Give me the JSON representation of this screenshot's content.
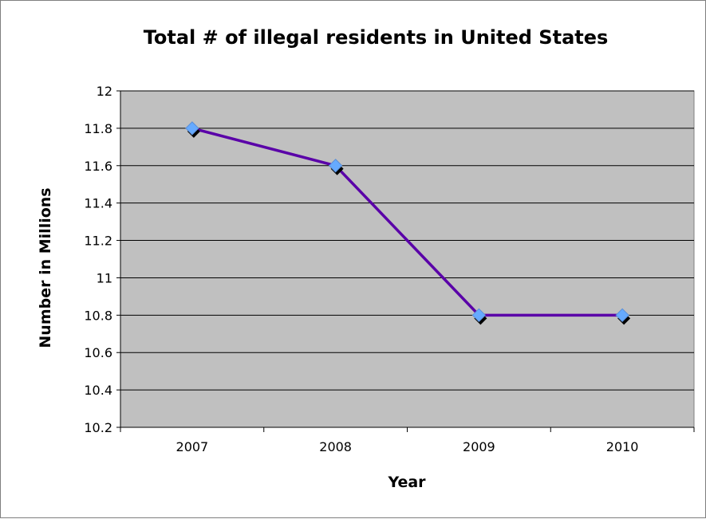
{
  "chart_data": {
    "type": "line",
    "title": "Total # of illegal residents in United States",
    "xlabel": "Year",
    "ylabel": "Number in Millions",
    "categories": [
      "2007",
      "2008",
      "2009",
      "2010"
    ],
    "series": [
      {
        "values": [
          11.8,
          11.6,
          10.8,
          10.8
        ],
        "line_color": "#5a00a8",
        "marker_color": "#66aaff",
        "marker_shadow_color": "#000000"
      }
    ],
    "ylim": [
      10.2,
      12
    ],
    "yticks": [
      "10.2",
      "10.4",
      "10.6",
      "10.8",
      "11",
      "11.2",
      "11.4",
      "11.6",
      "11.8",
      "12"
    ],
    "grid": true,
    "legend": "none",
    "plot_background": "#c0c0c0"
  }
}
